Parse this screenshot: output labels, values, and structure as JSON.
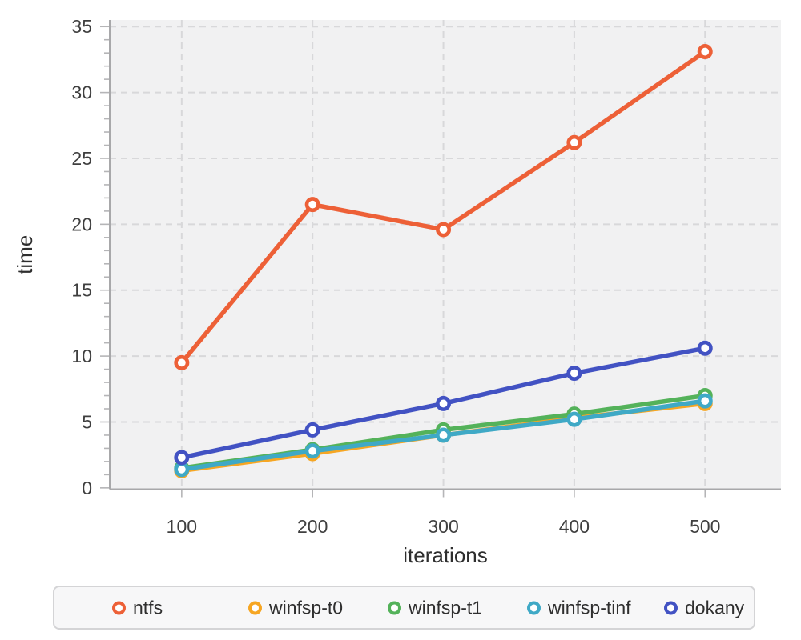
{
  "chart_data": {
    "type": "line",
    "title": "",
    "xlabel": "iterations",
    "ylabel": "time",
    "x": [
      100,
      200,
      300,
      400,
      500
    ],
    "xticks": [
      100,
      200,
      300,
      400,
      500
    ],
    "yticks": [
      0,
      5,
      10,
      15,
      20,
      25,
      30,
      35
    ],
    "xlim": [
      45,
      558
    ],
    "ylim": [
      -0.1,
      35.5
    ],
    "grid": "dashed, horizontal at y majors and vertical at x majors",
    "legend_position": "bottom",
    "marker_style": "open circle (white fill, colored ring)",
    "series": [
      {
        "name": "ntfs",
        "color": "#ed6037",
        "values": [
          9.5,
          21.5,
          19.6,
          26.2,
          33.1
        ]
      },
      {
        "name": "winfsp-t0",
        "color": "#f6a623",
        "values": [
          1.3,
          2.6,
          4.0,
          5.3,
          6.4
        ]
      },
      {
        "name": "winfsp-t1",
        "color": "#54b25a",
        "values": [
          1.5,
          2.9,
          4.4,
          5.6,
          7.0
        ]
      },
      {
        "name": "winfsp-tinf",
        "color": "#3fa9c6",
        "values": [
          1.4,
          2.8,
          4.0,
          5.2,
          6.6
        ]
      },
      {
        "name": "dokany",
        "color": "#4252c3",
        "values": [
          2.3,
          4.4,
          6.4,
          8.7,
          10.6
        ]
      }
    ],
    "colors": {
      "plot_background": "#f1f1f2",
      "gridline": "#d8d8da",
      "axis_line": "#a8a8aa",
      "tick": "#b5b5b7",
      "tick_label": "#3f3f3f",
      "axis_title": "#2e2e2e",
      "legend_background": "#f7f7f8",
      "legend_border": "#d4d4d6"
    }
  }
}
